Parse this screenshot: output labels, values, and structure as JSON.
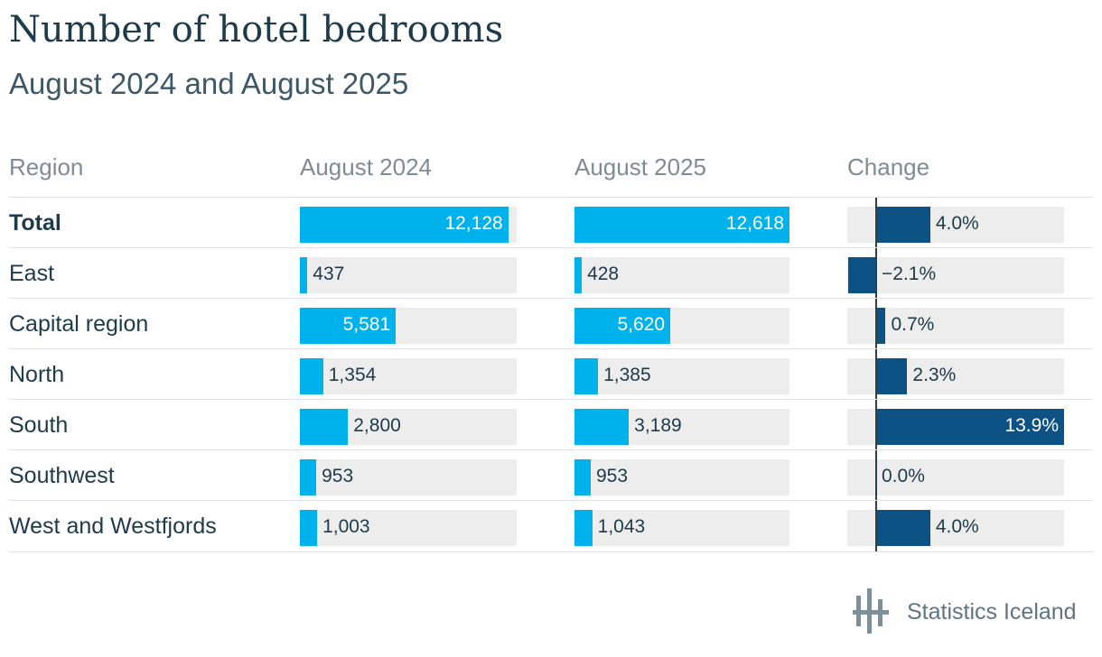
{
  "title": "Number of hotel bedrooms",
  "subtitle": "August 2024 and August 2025",
  "headers": {
    "region": "Region",
    "aug2024": "August 2024",
    "aug2025": "August 2025",
    "change": "Change"
  },
  "footer": {
    "brand": "Statistics Iceland",
    "logo_icon": "statistics-iceland-logo-icon"
  },
  "colors": {
    "bar_light": "#00b2eb",
    "bar_dark": "#0c5285",
    "track": "#ededed",
    "text": "#1d3b4a"
  },
  "chart_data": {
    "type": "table",
    "columns": [
      "Region",
      "August 2024",
      "August 2025",
      "Change"
    ],
    "bar_max": {
      "counts": 12618,
      "change_percent": 13.9
    },
    "rows": [
      {
        "region": "Total",
        "aug2024": 12128,
        "aug2024_label": "12,128",
        "aug2025": 12618,
        "aug2025_label": "12,618",
        "change": 4.0,
        "change_label": "4.0%",
        "bold": true
      },
      {
        "region": "East",
        "aug2024": 437,
        "aug2024_label": "437",
        "aug2025": 428,
        "aug2025_label": "428",
        "change": -2.1,
        "change_label": "−2.1%"
      },
      {
        "region": "Capital region",
        "aug2024": 5581,
        "aug2024_label": "5,581",
        "aug2025": 5620,
        "aug2025_label": "5,620",
        "change": 0.7,
        "change_label": "0.7%"
      },
      {
        "region": "North",
        "aug2024": 1354,
        "aug2024_label": "1,354",
        "aug2025": 1385,
        "aug2025_label": "1,385",
        "change": 2.3,
        "change_label": "2.3%"
      },
      {
        "region": "South",
        "aug2024": 2800,
        "aug2024_label": "2,800",
        "aug2025": 3189,
        "aug2025_label": "3,189",
        "change": 13.9,
        "change_label": "13.9%"
      },
      {
        "region": "Southwest",
        "aug2024": 953,
        "aug2024_label": "953",
        "aug2025": 953,
        "aug2025_label": "953",
        "change": 0.0,
        "change_label": "0.0%"
      },
      {
        "region": "West and Westfjords",
        "aug2024": 1003,
        "aug2024_label": "1,003",
        "aug2025": 1043,
        "aug2025_label": "1,043",
        "change": 4.0,
        "change_label": "4.0%"
      }
    ]
  }
}
